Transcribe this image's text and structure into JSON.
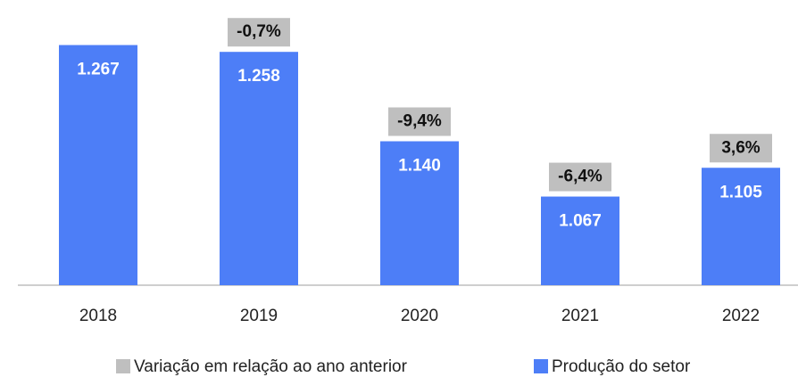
{
  "chart_data": {
    "type": "bar",
    "categories": [
      "2018",
      "2019",
      "2020",
      "2021",
      "2022"
    ],
    "series": [
      {
        "name": "Variação em relação ao ano anterior",
        "color": "#bfbfbf",
        "role": "change-label",
        "values": [
          null,
          -0.7,
          -9.4,
          -6.4,
          3.6
        ],
        "value_labels": [
          null,
          "-0,7%",
          "-9,4%",
          "-6,4%",
          "3,6%"
        ]
      },
      {
        "name": "Produção do setor",
        "color": "#4d7ef7",
        "values": [
          1267,
          1258,
          1140,
          1067,
          1105
        ],
        "value_labels": [
          "1.267",
          "1.258",
          "1.140",
          "1.067",
          "1.105"
        ]
      }
    ],
    "ylim": [
      950,
      1300
    ]
  }
}
